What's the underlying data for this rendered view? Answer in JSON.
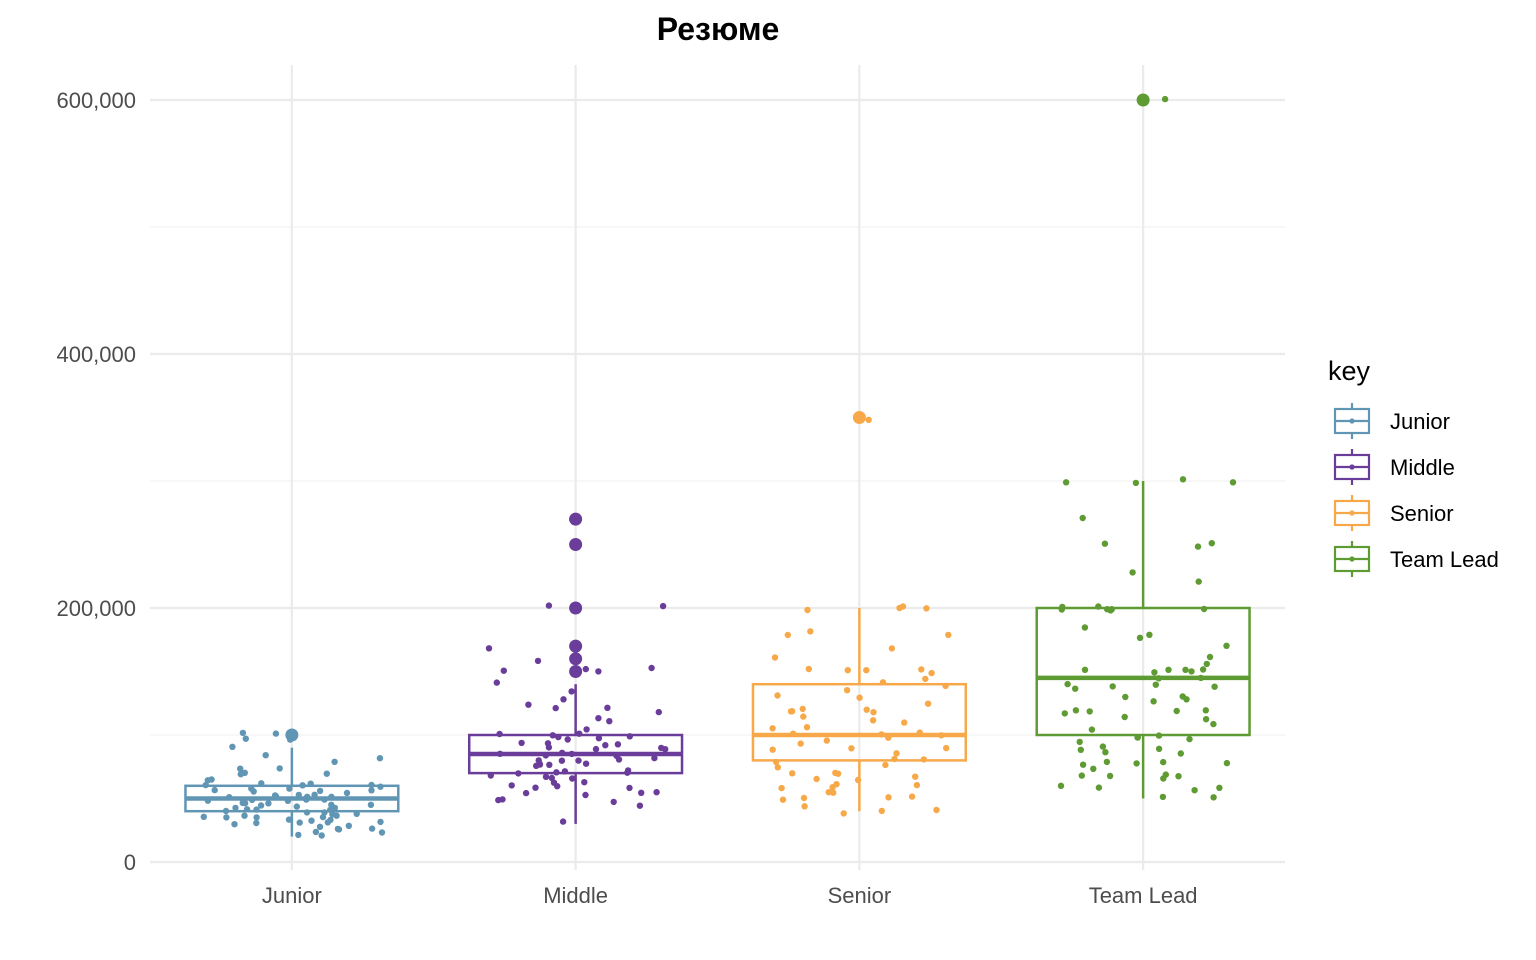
{
  "chart_data": {
    "type": "box",
    "title": "Резюме",
    "xlabel": "",
    "ylabel": "",
    "ylim": [
      0,
      630000
    ],
    "y_ticks": [
      0,
      200000,
      400000,
      600000
    ],
    "y_tick_labels": [
      "0",
      "200,000",
      "400,000",
      "600,000"
    ],
    "categories": [
      "Junior",
      "Middle",
      "Senior",
      "Team Lead"
    ],
    "legend": {
      "title": "key",
      "placement": "right"
    },
    "grid": true,
    "series": [
      {
        "name": "Junior",
        "color": "#6096B4",
        "box": {
          "min": 20000,
          "q1": 40000,
          "median": 50000,
          "q3": 60000,
          "max": 90000
        },
        "outliers": [
          100000
        ],
        "points": [
          100000,
          100000,
          95000,
          98000,
          90000,
          85000,
          80000,
          75000,
          72000,
          70000,
          68000,
          65000,
          62000,
          60000,
          60000,
          58000,
          57000,
          56000,
          55000,
          55000,
          54000,
          53000,
          52000,
          51000,
          50000,
          50000,
          50000,
          49000,
          48000,
          47000,
          46000,
          45000,
          45000,
          44000,
          43000,
          42000,
          41000,
          40000,
          40000,
          39000,
          38000,
          37000,
          36000,
          35000,
          35000,
          34000,
          33000,
          32000,
          31000,
          30000,
          30000,
          29000,
          28000,
          27000,
          25000,
          24000,
          22000,
          20000,
          20000,
          62000,
          58000,
          52000,
          47000,
          43000,
          38000,
          33000,
          28000,
          55000,
          65000,
          70000,
          80000,
          50000,
          45000,
          60000,
          40000,
          35000,
          30000,
          57000,
          53000,
          48000
        ]
      },
      {
        "name": "Middle",
        "color": "#6A3D9A",
        "box": {
          "min": 30000,
          "q1": 70000,
          "median": 85000,
          "q3": 100000,
          "max": 140000
        },
        "outliers": [
          150000,
          160000,
          170000,
          200000,
          250000,
          270000
        ],
        "points": [
          270000,
          250000,
          200000,
          200000,
          170000,
          160000,
          152000,
          150000,
          150000,
          150000,
          140000,
          135000,
          130000,
          125000,
          120000,
          120000,
          118000,
          115000,
          110000,
          105000,
          100000,
          100000,
          100000,
          98000,
          95000,
          93000,
          90000,
          90000,
          88000,
          86000,
          85000,
          85000,
          84000,
          82000,
          80000,
          80000,
          78000,
          76000,
          75000,
          74000,
          72000,
          70000,
          70000,
          68000,
          66000,
          65000,
          63000,
          60000,
          60000,
          58000,
          55000,
          55000,
          52000,
          50000,
          50000,
          48000,
          45000,
          30000,
          102000,
          97000,
          92000,
          87000,
          83000,
          79000,
          73000,
          67000,
          62000,
          57000,
          53000,
          96000,
          91000,
          81000,
          77000,
          71000
        ]
      },
      {
        "name": "Senior",
        "color": "#F7A94A",
        "box": {
          "min": 40000,
          "q1": 80000,
          "median": 100000,
          "q3": 140000,
          "max": 200000
        },
        "outliers": [
          350000
        ],
        "points": [
          350000,
          200000,
          200000,
          200000,
          200000,
          180000,
          180000,
          180000,
          170000,
          160000,
          150000,
          150000,
          150000,
          150000,
          150000,
          145000,
          140000,
          140000,
          135000,
          130000,
          130000,
          125000,
          120000,
          120000,
          120000,
          120000,
          115000,
          110000,
          110000,
          105000,
          100000,
          100000,
          100000,
          100000,
          98000,
          95000,
          90000,
          90000,
          88000,
          85000,
          80000,
          80000,
          78000,
          75000,
          72000,
          70000,
          70000,
          68000,
          65000,
          60000,
          60000,
          58000,
          55000,
          55000,
          50000,
          50000,
          48000,
          45000,
          40000,
          40000,
          40000,
          118000,
          108000,
          92000,
          82000,
          66000,
          62000,
          52000
        ]
      },
      {
        "name": "Team Lead",
        "color": "#5E9B33",
        "box": {
          "min": 50000,
          "q1": 100000,
          "median": 145000,
          "q3": 200000,
          "max": 300000
        },
        "outliers": [
          600000
        ],
        "points": [
          600000,
          300000,
          300000,
          300000,
          300000,
          270000,
          250000,
          250000,
          250000,
          230000,
          220000,
          200000,
          200000,
          200000,
          200000,
          200000,
          200000,
          200000,
          185000,
          180000,
          175000,
          170000,
          160000,
          155000,
          150000,
          150000,
          150000,
          150000,
          150000,
          148000,
          145000,
          145000,
          140000,
          140000,
          138000,
          135000,
          130000,
          128000,
          125000,
          120000,
          120000,
          120000,
          120000,
          118000,
          115000,
          110000,
          105000,
          100000,
          100000,
          100000,
          95000,
          90000,
          90000,
          88000,
          85000,
          80000,
          80000,
          78000,
          75000,
          72000,
          70000,
          70000,
          68000,
          65000,
          60000,
          60000,
          58000,
          55000,
          50000,
          50000,
          142000,
          132000,
          112000,
          96000,
          84000,
          76000,
          66000
        ]
      }
    ]
  }
}
